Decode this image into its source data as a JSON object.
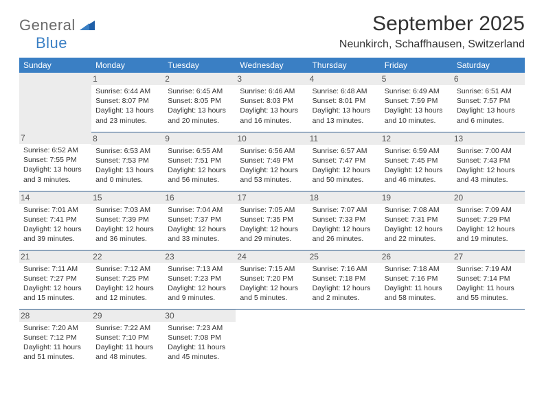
{
  "brand": {
    "part1": "General",
    "part2": "Blue"
  },
  "title": "September 2025",
  "location": "Neunkirch, Schaffhausen, Switzerland",
  "colors": {
    "header_bg": "#3a7fc4",
    "header_fg": "#ffffff",
    "daynum_bg": "#ececec",
    "row_border": "#2c5a8a",
    "text": "#333333",
    "logo_gray": "#6b6b6b",
    "logo_blue": "#3a7fc4"
  },
  "day_headers": [
    "Sunday",
    "Monday",
    "Tuesday",
    "Wednesday",
    "Thursday",
    "Friday",
    "Saturday"
  ],
  "weeks": [
    [
      {
        "n": "",
        "sr": "",
        "ss": "",
        "dl": ""
      },
      {
        "n": "1",
        "sr": "6:44 AM",
        "ss": "8:07 PM",
        "dl": "13 hours and 23 minutes."
      },
      {
        "n": "2",
        "sr": "6:45 AM",
        "ss": "8:05 PM",
        "dl": "13 hours and 20 minutes."
      },
      {
        "n": "3",
        "sr": "6:46 AM",
        "ss": "8:03 PM",
        "dl": "13 hours and 16 minutes."
      },
      {
        "n": "4",
        "sr": "6:48 AM",
        "ss": "8:01 PM",
        "dl": "13 hours and 13 minutes."
      },
      {
        "n": "5",
        "sr": "6:49 AM",
        "ss": "7:59 PM",
        "dl": "13 hours and 10 minutes."
      },
      {
        "n": "6",
        "sr": "6:51 AM",
        "ss": "7:57 PM",
        "dl": "13 hours and 6 minutes."
      }
    ],
    [
      {
        "n": "7",
        "sr": "6:52 AM",
        "ss": "7:55 PM",
        "dl": "13 hours and 3 minutes."
      },
      {
        "n": "8",
        "sr": "6:53 AM",
        "ss": "7:53 PM",
        "dl": "13 hours and 0 minutes."
      },
      {
        "n": "9",
        "sr": "6:55 AM",
        "ss": "7:51 PM",
        "dl": "12 hours and 56 minutes."
      },
      {
        "n": "10",
        "sr": "6:56 AM",
        "ss": "7:49 PM",
        "dl": "12 hours and 53 minutes."
      },
      {
        "n": "11",
        "sr": "6:57 AM",
        "ss": "7:47 PM",
        "dl": "12 hours and 50 minutes."
      },
      {
        "n": "12",
        "sr": "6:59 AM",
        "ss": "7:45 PM",
        "dl": "12 hours and 46 minutes."
      },
      {
        "n": "13",
        "sr": "7:00 AM",
        "ss": "7:43 PM",
        "dl": "12 hours and 43 minutes."
      }
    ],
    [
      {
        "n": "14",
        "sr": "7:01 AM",
        "ss": "7:41 PM",
        "dl": "12 hours and 39 minutes."
      },
      {
        "n": "15",
        "sr": "7:03 AM",
        "ss": "7:39 PM",
        "dl": "12 hours and 36 minutes."
      },
      {
        "n": "16",
        "sr": "7:04 AM",
        "ss": "7:37 PM",
        "dl": "12 hours and 33 minutes."
      },
      {
        "n": "17",
        "sr": "7:05 AM",
        "ss": "7:35 PM",
        "dl": "12 hours and 29 minutes."
      },
      {
        "n": "18",
        "sr": "7:07 AM",
        "ss": "7:33 PM",
        "dl": "12 hours and 26 minutes."
      },
      {
        "n": "19",
        "sr": "7:08 AM",
        "ss": "7:31 PM",
        "dl": "12 hours and 22 minutes."
      },
      {
        "n": "20",
        "sr": "7:09 AM",
        "ss": "7:29 PM",
        "dl": "12 hours and 19 minutes."
      }
    ],
    [
      {
        "n": "21",
        "sr": "7:11 AM",
        "ss": "7:27 PM",
        "dl": "12 hours and 15 minutes."
      },
      {
        "n": "22",
        "sr": "7:12 AM",
        "ss": "7:25 PM",
        "dl": "12 hours and 12 minutes."
      },
      {
        "n": "23",
        "sr": "7:13 AM",
        "ss": "7:23 PM",
        "dl": "12 hours and 9 minutes."
      },
      {
        "n": "24",
        "sr": "7:15 AM",
        "ss": "7:20 PM",
        "dl": "12 hours and 5 minutes."
      },
      {
        "n": "25",
        "sr": "7:16 AM",
        "ss": "7:18 PM",
        "dl": "12 hours and 2 minutes."
      },
      {
        "n": "26",
        "sr": "7:18 AM",
        "ss": "7:16 PM",
        "dl": "11 hours and 58 minutes."
      },
      {
        "n": "27",
        "sr": "7:19 AM",
        "ss": "7:14 PM",
        "dl": "11 hours and 55 minutes."
      }
    ],
    [
      {
        "n": "28",
        "sr": "7:20 AM",
        "ss": "7:12 PM",
        "dl": "11 hours and 51 minutes."
      },
      {
        "n": "29",
        "sr": "7:22 AM",
        "ss": "7:10 PM",
        "dl": "11 hours and 48 minutes."
      },
      {
        "n": "30",
        "sr": "7:23 AM",
        "ss": "7:08 PM",
        "dl": "11 hours and 45 minutes."
      },
      {
        "n": "",
        "sr": "",
        "ss": "",
        "dl": ""
      },
      {
        "n": "",
        "sr": "",
        "ss": "",
        "dl": ""
      },
      {
        "n": "",
        "sr": "",
        "ss": "",
        "dl": ""
      },
      {
        "n": "",
        "sr": "",
        "ss": "",
        "dl": ""
      }
    ]
  ],
  "labels": {
    "sunrise": "Sunrise:",
    "sunset": "Sunset:",
    "daylight": "Daylight:"
  }
}
